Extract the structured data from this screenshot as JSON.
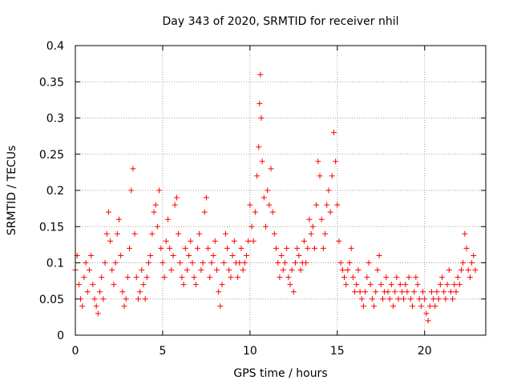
{
  "chart_data": {
    "type": "scatter",
    "title": "Day 343 of 2020, SRMTID for receiver nhil",
    "xlabel": "GPS time / hours",
    "ylabel": "SRMTID / TECUs",
    "xlim": [
      0,
      23.5
    ],
    "ylim": [
      0,
      0.4
    ],
    "xticks": [
      0,
      5,
      10,
      15,
      20
    ],
    "xtick_labels": [
      "0",
      "5",
      "10",
      "15",
      "20"
    ],
    "yticks": [
      0,
      0.05,
      0.1,
      0.15,
      0.2,
      0.25,
      0.3,
      0.35,
      0.4
    ],
    "ytick_labels": [
      "0",
      "0.05",
      "0.1",
      "0.15",
      "0.2",
      "0.25",
      "0.3",
      "0.35",
      "0.4"
    ],
    "grid": true,
    "marker": "+",
    "series": [
      {
        "name": "SRMTID",
        "color": "#ff0000",
        "points": [
          [
            0.0,
            0.09
          ],
          [
            0.1,
            0.11
          ],
          [
            0.2,
            0.07
          ],
          [
            0.3,
            0.05
          ],
          [
            0.4,
            0.04
          ],
          [
            0.5,
            0.08
          ],
          [
            0.6,
            0.1
          ],
          [
            0.7,
            0.06
          ],
          [
            0.8,
            0.09
          ],
          [
            0.9,
            0.11
          ],
          [
            1.0,
            0.07
          ],
          [
            1.1,
            0.05
          ],
          [
            1.2,
            0.04
          ],
          [
            1.3,
            0.03
          ],
          [
            1.4,
            0.06
          ],
          [
            1.5,
            0.08
          ],
          [
            1.6,
            0.05
          ],
          [
            1.7,
            0.1
          ],
          [
            1.8,
            0.14
          ],
          [
            1.9,
            0.17
          ],
          [
            2.0,
            0.13
          ],
          [
            2.1,
            0.09
          ],
          [
            2.2,
            0.07
          ],
          [
            2.3,
            0.1
          ],
          [
            2.4,
            0.14
          ],
          [
            2.5,
            0.16
          ],
          [
            2.6,
            0.11
          ],
          [
            2.7,
            0.06
          ],
          [
            2.8,
            0.04
          ],
          [
            2.9,
            0.05
          ],
          [
            3.0,
            0.08
          ],
          [
            3.1,
            0.12
          ],
          [
            3.2,
            0.2
          ],
          [
            3.3,
            0.23
          ],
          [
            3.4,
            0.14
          ],
          [
            3.5,
            0.08
          ],
          [
            3.6,
            0.05
          ],
          [
            3.7,
            0.06
          ],
          [
            3.8,
            0.09
          ],
          [
            3.9,
            0.07
          ],
          [
            4.0,
            0.05
          ],
          [
            4.1,
            0.08
          ],
          [
            4.2,
            0.1
          ],
          [
            4.3,
            0.11
          ],
          [
            4.4,
            0.14
          ],
          [
            4.5,
            0.17
          ],
          [
            4.6,
            0.18
          ],
          [
            4.7,
            0.15
          ],
          [
            4.8,
            0.2
          ],
          [
            4.9,
            0.12
          ],
          [
            5.0,
            0.1
          ],
          [
            5.1,
            0.08
          ],
          [
            5.2,
            0.13
          ],
          [
            5.3,
            0.16
          ],
          [
            5.4,
            0.12
          ],
          [
            5.5,
            0.09
          ],
          [
            5.6,
            0.11
          ],
          [
            5.7,
            0.18
          ],
          [
            5.8,
            0.19
          ],
          [
            5.9,
            0.14
          ],
          [
            6.0,
            0.1
          ],
          [
            6.1,
            0.08
          ],
          [
            6.2,
            0.07
          ],
          [
            6.3,
            0.12
          ],
          [
            6.4,
            0.09
          ],
          [
            6.5,
            0.11
          ],
          [
            6.6,
            0.13
          ],
          [
            6.7,
            0.1
          ],
          [
            6.8,
            0.08
          ],
          [
            6.9,
            0.07
          ],
          [
            7.0,
            0.12
          ],
          [
            7.1,
            0.14
          ],
          [
            7.2,
            0.09
          ],
          [
            7.3,
            0.1
          ],
          [
            7.4,
            0.17
          ],
          [
            7.5,
            0.19
          ],
          [
            7.6,
            0.12
          ],
          [
            7.7,
            0.08
          ],
          [
            7.8,
            0.1
          ],
          [
            7.9,
            0.11
          ],
          [
            8.0,
            0.13
          ],
          [
            8.1,
            0.09
          ],
          [
            8.2,
            0.06
          ],
          [
            8.3,
            0.04
          ],
          [
            8.4,
            0.07
          ],
          [
            8.5,
            0.1
          ],
          [
            8.6,
            0.14
          ],
          [
            8.7,
            0.12
          ],
          [
            8.8,
            0.09
          ],
          [
            8.9,
            0.08
          ],
          [
            9.0,
            0.11
          ],
          [
            9.1,
            0.13
          ],
          [
            9.2,
            0.1
          ],
          [
            9.3,
            0.08
          ],
          [
            9.4,
            0.1
          ],
          [
            9.5,
            0.12
          ],
          [
            9.6,
            0.09
          ],
          [
            9.7,
            0.1
          ],
          [
            9.8,
            0.11
          ],
          [
            9.9,
            0.13
          ],
          [
            10.0,
            0.18
          ],
          [
            10.1,
            0.15
          ],
          [
            10.2,
            0.13
          ],
          [
            10.3,
            0.17
          ],
          [
            10.4,
            0.22
          ],
          [
            10.5,
            0.26
          ],
          [
            10.55,
            0.32
          ],
          [
            10.6,
            0.36
          ],
          [
            10.65,
            0.3
          ],
          [
            10.7,
            0.24
          ],
          [
            10.8,
            0.19
          ],
          [
            10.9,
            0.15
          ],
          [
            11.0,
            0.2
          ],
          [
            11.1,
            0.18
          ],
          [
            11.2,
            0.23
          ],
          [
            11.3,
            0.17
          ],
          [
            11.4,
            0.14
          ],
          [
            11.5,
            0.12
          ],
          [
            11.6,
            0.1
          ],
          [
            11.7,
            0.08
          ],
          [
            11.8,
            0.11
          ],
          [
            11.9,
            0.09
          ],
          [
            12.0,
            0.1
          ],
          [
            12.1,
            0.12
          ],
          [
            12.2,
            0.08
          ],
          [
            12.3,
            0.07
          ],
          [
            12.4,
            0.09
          ],
          [
            12.5,
            0.06
          ],
          [
            12.6,
            0.1
          ],
          [
            12.7,
            0.12
          ],
          [
            12.8,
            0.11
          ],
          [
            12.9,
            0.09
          ],
          [
            13.0,
            0.1
          ],
          [
            13.1,
            0.13
          ],
          [
            13.2,
            0.1
          ],
          [
            13.3,
            0.12
          ],
          [
            13.4,
            0.16
          ],
          [
            13.5,
            0.14
          ],
          [
            13.6,
            0.15
          ],
          [
            13.7,
            0.12
          ],
          [
            13.8,
            0.18
          ],
          [
            13.9,
            0.24
          ],
          [
            14.0,
            0.22
          ],
          [
            14.1,
            0.16
          ],
          [
            14.2,
            0.12
          ],
          [
            14.3,
            0.14
          ],
          [
            14.4,
            0.18
          ],
          [
            14.5,
            0.2
          ],
          [
            14.6,
            0.17
          ],
          [
            14.7,
            0.22
          ],
          [
            14.8,
            0.28
          ],
          [
            14.9,
            0.24
          ],
          [
            15.0,
            0.18
          ],
          [
            15.1,
            0.13
          ],
          [
            15.2,
            0.1
          ],
          [
            15.3,
            0.09
          ],
          [
            15.4,
            0.08
          ],
          [
            15.5,
            0.07
          ],
          [
            15.6,
            0.09
          ],
          [
            15.7,
            0.1
          ],
          [
            15.8,
            0.12
          ],
          [
            15.9,
            0.08
          ],
          [
            16.0,
            0.06
          ],
          [
            16.1,
            0.07
          ],
          [
            16.2,
            0.09
          ],
          [
            16.3,
            0.06
          ],
          [
            16.4,
            0.05
          ],
          [
            16.5,
            0.04
          ],
          [
            16.6,
            0.06
          ],
          [
            16.7,
            0.08
          ],
          [
            16.8,
            0.1
          ],
          [
            16.9,
            0.07
          ],
          [
            17.0,
            0.05
          ],
          [
            17.1,
            0.04
          ],
          [
            17.2,
            0.06
          ],
          [
            17.3,
            0.09
          ],
          [
            17.4,
            0.11
          ],
          [
            17.5,
            0.07
          ],
          [
            17.6,
            0.05
          ],
          [
            17.7,
            0.06
          ],
          [
            17.8,
            0.08
          ],
          [
            17.9,
            0.06
          ],
          [
            18.0,
            0.05
          ],
          [
            18.1,
            0.07
          ],
          [
            18.2,
            0.04
          ],
          [
            18.3,
            0.06
          ],
          [
            18.4,
            0.08
          ],
          [
            18.5,
            0.05
          ],
          [
            18.6,
            0.07
          ],
          [
            18.7,
            0.06
          ],
          [
            18.8,
            0.05
          ],
          [
            18.9,
            0.07
          ],
          [
            19.0,
            0.06
          ],
          [
            19.1,
            0.08
          ],
          [
            19.2,
            0.05
          ],
          [
            19.3,
            0.04
          ],
          [
            19.4,
            0.06
          ],
          [
            19.5,
            0.08
          ],
          [
            19.6,
            0.07
          ],
          [
            19.7,
            0.05
          ],
          [
            19.8,
            0.04
          ],
          [
            19.9,
            0.06
          ],
          [
            20.0,
            0.05
          ],
          [
            20.1,
            0.03
          ],
          [
            20.2,
            0.02
          ],
          [
            20.3,
            0.04
          ],
          [
            20.4,
            0.06
          ],
          [
            20.5,
            0.05
          ],
          [
            20.6,
            0.04
          ],
          [
            20.7,
            0.06
          ],
          [
            20.8,
            0.05
          ],
          [
            20.9,
            0.07
          ],
          [
            21.0,
            0.08
          ],
          [
            21.1,
            0.06
          ],
          [
            21.2,
            0.05
          ],
          [
            21.3,
            0.07
          ],
          [
            21.4,
            0.09
          ],
          [
            21.5,
            0.06
          ],
          [
            21.6,
            0.05
          ],
          [
            21.7,
            0.07
          ],
          [
            21.8,
            0.06
          ],
          [
            21.9,
            0.08
          ],
          [
            22.0,
            0.07
          ],
          [
            22.1,
            0.09
          ],
          [
            22.2,
            0.1
          ],
          [
            22.3,
            0.14
          ],
          [
            22.4,
            0.12
          ],
          [
            22.5,
            0.09
          ],
          [
            22.6,
            0.08
          ],
          [
            22.7,
            0.1
          ],
          [
            22.8,
            0.11
          ],
          [
            22.9,
            0.09
          ]
        ]
      }
    ]
  }
}
